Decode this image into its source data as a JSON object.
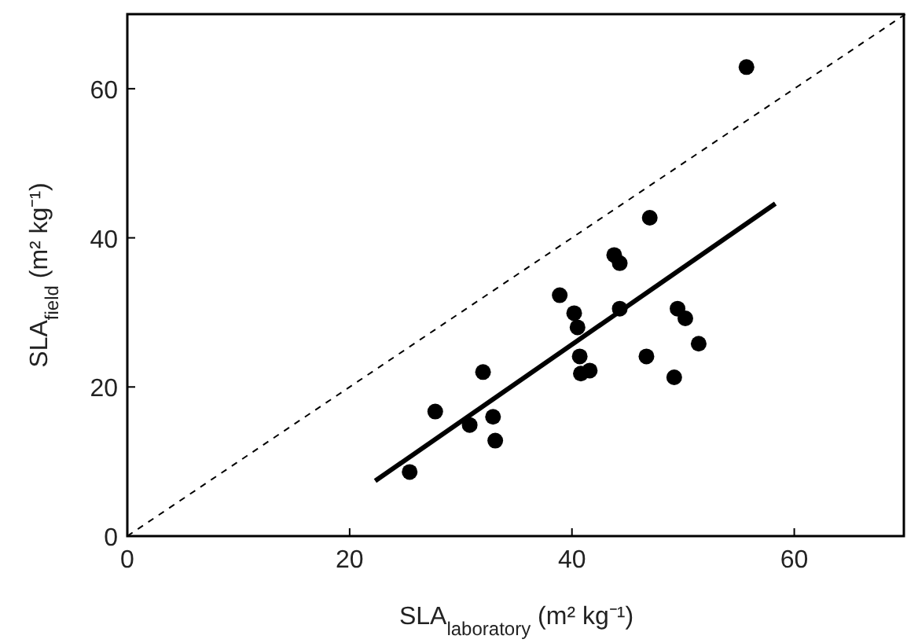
{
  "chart_data": {
    "type": "scatter",
    "xlabel": "SLA$_{laboratory}$ (m² kg⁻¹)",
    "ylabel": "SLA$_{field}$ (m² kg⁻¹)",
    "xlim": [
      0,
      70
    ],
    "ylim": [
      0,
      70
    ],
    "xticks": [
      0,
      20,
      40,
      60
    ],
    "yticks": [
      0,
      20,
      40,
      60
    ],
    "grid": false,
    "series": [
      {
        "color": "#000000",
        "marker": "circle",
        "x": [
          25.4,
          27.7,
          30.8,
          32.0,
          32.9,
          33.1,
          38.9,
          40.2,
          40.5,
          40.7,
          40.8,
          41.6,
          43.8,
          44.3,
          44.3,
          46.7,
          47.0,
          49.2,
          49.5,
          50.2,
          51.4,
          55.7
        ],
        "values": [
          8.6,
          16.7,
          14.9,
          22.0,
          16.0,
          12.8,
          32.3,
          29.9,
          28.0,
          24.1,
          21.8,
          22.2,
          37.7,
          36.6,
          30.5,
          24.1,
          42.7,
          21.3,
          30.5,
          29.2,
          25.8,
          62.9
        ]
      },
      {
        "type": "line",
        "color": "#000000",
        "line_style": "solid",
        "marker": "none",
        "x": [
          22.3,
          58.3
        ],
        "values": [
          7.4,
          44.6
        ]
      },
      {
        "type": "line",
        "color": "#000000",
        "line_style": "dashed",
        "marker": "none",
        "x": [
          0,
          70
        ],
        "values": [
          0,
          70
        ]
      }
    ]
  }
}
